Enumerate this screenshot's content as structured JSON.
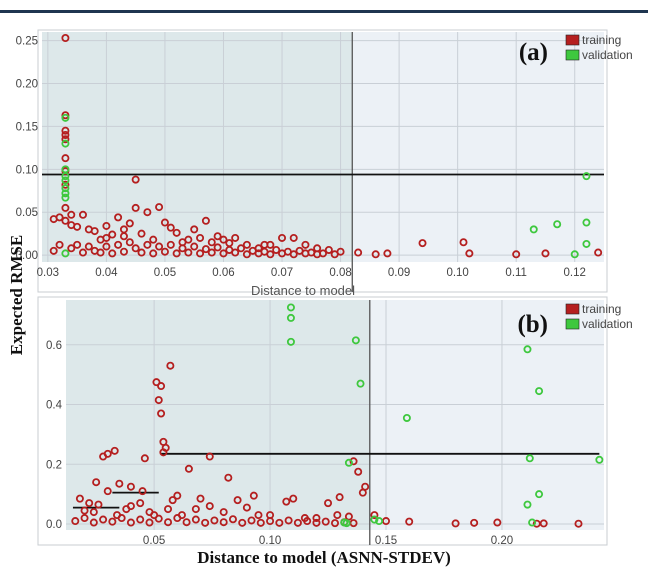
{
  "ylabel": "Expected RMSE",
  "xlabel": "Distance to model (ASNN-STDEV)",
  "colors": {
    "training": "#b51f1f",
    "validation": "#3ec83e",
    "shade": "#dde8ea",
    "bg": "#ecf1f6"
  },
  "chart_data": [
    {
      "type": "scatter",
      "panel_label": "(a)",
      "xlim": [
        0.029,
        0.125
      ],
      "ylim": [
        -0.008,
        0.26
      ],
      "xticks": [
        "0.03",
        "0.04",
        "0.05",
        "0.06",
        "0.07",
        "0.08",
        "0.09",
        "0.10",
        "0.11",
        "0.12"
      ],
      "xtick_values": [
        0.03,
        0.04,
        0.05,
        0.06,
        0.07,
        0.08,
        0.09,
        0.1,
        0.11,
        0.12
      ],
      "yticks": [
        "0.00",
        "0.05",
        "0.10",
        "0.15",
        "0.20",
        "0.25"
      ],
      "ytick_values": [
        0,
        0.05,
        0.1,
        0.15,
        0.2,
        0.25
      ],
      "xlabel_partial": "Distance to model",
      "threshold_x": 0.082,
      "threshold_y": 0.094,
      "legend": [
        "training",
        "validation"
      ],
      "legend_position": "top-right",
      "series": [
        {
          "name": "training",
          "points": [
            [
              0.033,
              0.253
            ],
            [
              0.033,
              0.163
            ],
            [
              0.033,
              0.145
            ],
            [
              0.033,
              0.14
            ],
            [
              0.033,
              0.135
            ],
            [
              0.033,
              0.113
            ],
            [
              0.033,
              0.098
            ],
            [
              0.033,
              0.082
            ],
            [
              0.033,
              0.055
            ],
            [
              0.034,
              0.047
            ],
            [
              0.033,
              0.04
            ],
            [
              0.034,
              0.035
            ],
            [
              0.031,
              0.042
            ],
            [
              0.032,
              0.044
            ],
            [
              0.035,
              0.033
            ],
            [
              0.036,
              0.047
            ],
            [
              0.037,
              0.03
            ],
            [
              0.038,
              0.028
            ],
            [
              0.039,
              0.018
            ],
            [
              0.04,
              0.034
            ],
            [
              0.041,
              0.024
            ],
            [
              0.042,
              0.044
            ],
            [
              0.043,
              0.03
            ],
            [
              0.044,
              0.037
            ],
            [
              0.045,
              0.088
            ],
            [
              0.045,
              0.055
            ],
            [
              0.047,
              0.05
            ],
            [
              0.049,
              0.056
            ],
            [
              0.05,
              0.038
            ],
            [
              0.051,
              0.032
            ],
            [
              0.052,
              0.026
            ],
            [
              0.054,
              0.018
            ],
            [
              0.055,
              0.03
            ],
            [
              0.056,
              0.02
            ],
            [
              0.057,
              0.04
            ],
            [
              0.058,
              0.015
            ],
            [
              0.059,
              0.022
            ],
            [
              0.06,
              0.018
            ],
            [
              0.062,
              0.02
            ],
            [
              0.064,
              0.012
            ],
            [
              0.066,
              0.008
            ],
            [
              0.068,
              0.012
            ],
            [
              0.07,
              0.02
            ],
            [
              0.072,
              0.02
            ],
            [
              0.074,
              0.012
            ],
            [
              0.076,
              0.008
            ],
            [
              0.078,
              0.006
            ],
            [
              0.08,
              0.004
            ],
            [
              0.083,
              0.003
            ],
            [
              0.086,
              0.001
            ],
            [
              0.088,
              0.002
            ],
            [
              0.094,
              0.014
            ],
            [
              0.101,
              0.015
            ],
            [
              0.102,
              0.002
            ],
            [
              0.11,
              0.001
            ],
            [
              0.115,
              0.002
            ],
            [
              0.124,
              0.003
            ],
            [
              0.031,
              0.005
            ],
            [
              0.032,
              0.012
            ],
            [
              0.034,
              0.008
            ],
            [
              0.035,
              0.012
            ],
            [
              0.036,
              0.003
            ],
            [
              0.037,
              0.01
            ],
            [
              0.038,
              0.005
            ],
            [
              0.039,
              0.003
            ],
            [
              0.04,
              0.01
            ],
            [
              0.041,
              0.002
            ],
            [
              0.042,
              0.012
            ],
            [
              0.043,
              0.004
            ],
            [
              0.044,
              0.015
            ],
            [
              0.045,
              0.008
            ],
            [
              0.046,
              0.003
            ],
            [
              0.047,
              0.012
            ],
            [
              0.048,
              0.002
            ],
            [
              0.049,
              0.01
            ],
            [
              0.05,
              0.004
            ],
            [
              0.051,
              0.012
            ],
            [
              0.052,
              0.002
            ],
            [
              0.053,
              0.008
            ],
            [
              0.054,
              0.003
            ],
            [
              0.055,
              0.01
            ],
            [
              0.056,
              0.002
            ],
            [
              0.057,
              0.007
            ],
            [
              0.058,
              0.003
            ],
            [
              0.059,
              0.009
            ],
            [
              0.06,
              0.002
            ],
            [
              0.061,
              0.006
            ],
            [
              0.062,
              0.003
            ],
            [
              0.063,
              0.008
            ],
            [
              0.064,
              0.001
            ],
            [
              0.065,
              0.005
            ],
            [
              0.066,
              0.002
            ],
            [
              0.067,
              0.004
            ],
            [
              0.068,
              0.001
            ],
            [
              0.069,
              0.006
            ],
            [
              0.07,
              0.002
            ],
            [
              0.071,
              0.004
            ],
            [
              0.072,
              0.001
            ],
            [
              0.073,
              0.005
            ],
            [
              0.074,
              0.002
            ],
            [
              0.075,
              0.003
            ],
            [
              0.076,
              0.001
            ],
            [
              0.077,
              0.002
            ],
            [
              0.079,
              0.001
            ],
            [
              0.04,
              0.02
            ],
            [
              0.043,
              0.022
            ],
            [
              0.046,
              0.025
            ],
            [
              0.048,
              0.018
            ],
            [
              0.053,
              0.015
            ],
            [
              0.061,
              0.014
            ],
            [
              0.067,
              0.012
            ]
          ]
        },
        {
          "name": "validation",
          "points": [
            [
              0.033,
              0.16
            ],
            [
              0.033,
              0.13
            ],
            [
              0.033,
              0.1
            ],
            [
              0.033,
              0.092
            ],
            [
              0.033,
              0.087
            ],
            [
              0.033,
              0.078
            ],
            [
              0.033,
              0.072
            ],
            [
              0.033,
              0.067
            ],
            [
              0.033,
              0.002
            ],
            [
              0.113,
              0.03
            ],
            [
              0.117,
              0.036
            ],
            [
              0.12,
              0.001
            ],
            [
              0.122,
              0.092
            ],
            [
              0.122,
              0.038
            ],
            [
              0.122,
              0.013
            ]
          ]
        }
      ]
    },
    {
      "type": "scatter",
      "panel_label": "(b)",
      "xlim": [
        0.012,
        0.244
      ],
      "ylim": [
        -0.02,
        0.75
      ],
      "xticks": [
        "0.05",
        "0.10",
        "0.15",
        "0.20"
      ],
      "xtick_values": [
        0.05,
        0.1,
        0.15,
        0.2
      ],
      "yticks": [
        "0.0",
        "0.2",
        "0.4",
        "0.6"
      ],
      "ytick_values": [
        0,
        0.2,
        0.4,
        0.6
      ],
      "threshold_x": 0.143,
      "step_segments": [
        [
          0.015,
          0.035,
          0.055
        ],
        [
          0.032,
          0.052,
          0.105
        ],
        [
          0.053,
          0.242,
          0.235
        ]
      ],
      "legend": [
        "training",
        "validation"
      ],
      "legend_position": "top-right",
      "series": [
        {
          "name": "training",
          "points": [
            [
              0.057,
              0.53
            ],
            [
              0.051,
              0.475
            ],
            [
              0.053,
              0.462
            ],
            [
              0.052,
              0.415
            ],
            [
              0.053,
              0.37
            ],
            [
              0.054,
              0.275
            ],
            [
              0.055,
              0.255
            ],
            [
              0.054,
              0.24
            ],
            [
              0.03,
              0.235
            ],
            [
              0.028,
              0.226
            ],
            [
              0.033,
              0.245
            ],
            [
              0.046,
              0.22
            ],
            [
              0.074,
              0.226
            ],
            [
              0.065,
              0.185
            ],
            [
              0.082,
              0.155
            ],
            [
              0.136,
              0.21
            ],
            [
              0.138,
              0.175
            ],
            [
              0.14,
              0.105
            ],
            [
              0.141,
              0.125
            ],
            [
              0.035,
              0.135
            ],
            [
              0.04,
              0.125
            ],
            [
              0.025,
              0.14
            ],
            [
              0.03,
              0.11
            ],
            [
              0.045,
              0.11
            ],
            [
              0.06,
              0.095
            ],
            [
              0.058,
              0.08
            ],
            [
              0.07,
              0.085
            ],
            [
              0.086,
              0.08
            ],
            [
              0.093,
              0.095
            ],
            [
              0.107,
              0.075
            ],
            [
              0.11,
              0.085
            ],
            [
              0.125,
              0.07
            ],
            [
              0.13,
              0.09
            ],
            [
              0.018,
              0.085
            ],
            [
              0.022,
              0.07
            ],
            [
              0.02,
              0.045
            ],
            [
              0.026,
              0.065
            ],
            [
              0.04,
              0.06
            ],
            [
              0.048,
              0.04
            ],
            [
              0.056,
              0.05
            ],
            [
              0.068,
              0.05
            ],
            [
              0.08,
              0.04
            ],
            [
              0.095,
              0.03
            ],
            [
              0.1,
              0.03
            ],
            [
              0.115,
              0.02
            ],
            [
              0.12,
              0.02
            ],
            [
              0.129,
              0.03
            ],
            [
              0.134,
              0.025
            ],
            [
              0.145,
              0.03
            ],
            [
              0.15,
              0.01
            ],
            [
              0.16,
              0.008
            ],
            [
              0.18,
              0.002
            ],
            [
              0.188,
              0.004
            ],
            [
              0.198,
              0.005
            ],
            [
              0.215,
              0.001
            ],
            [
              0.218,
              0.002
            ],
            [
              0.233,
              0.001
            ],
            [
              0.016,
              0.01
            ],
            [
              0.02,
              0.02
            ],
            [
              0.024,
              0.005
            ],
            [
              0.028,
              0.015
            ],
            [
              0.032,
              0.008
            ],
            [
              0.036,
              0.02
            ],
            [
              0.04,
              0.005
            ],
            [
              0.044,
              0.015
            ],
            [
              0.048,
              0.005
            ],
            [
              0.052,
              0.018
            ],
            [
              0.056,
              0.006
            ],
            [
              0.06,
              0.02
            ],
            [
              0.064,
              0.006
            ],
            [
              0.068,
              0.015
            ],
            [
              0.072,
              0.004
            ],
            [
              0.076,
              0.012
            ],
            [
              0.08,
              0.006
            ],
            [
              0.084,
              0.016
            ],
            [
              0.088,
              0.004
            ],
            [
              0.092,
              0.012
            ],
            [
              0.096,
              0.004
            ],
            [
              0.1,
              0.01
            ],
            [
              0.104,
              0.004
            ],
            [
              0.108,
              0.012
            ],
            [
              0.112,
              0.004
            ],
            [
              0.116,
              0.01
            ],
            [
              0.12,
              0.004
            ],
            [
              0.124,
              0.008
            ],
            [
              0.128,
              0.003
            ],
            [
              0.132,
              0.006
            ],
            [
              0.136,
              0.003
            ],
            [
              0.024,
              0.04
            ],
            [
              0.034,
              0.03
            ],
            [
              0.038,
              0.05
            ],
            [
              0.044,
              0.07
            ],
            [
              0.05,
              0.03
            ],
            [
              0.062,
              0.03
            ],
            [
              0.074,
              0.06
            ],
            [
              0.09,
              0.055
            ]
          ]
        },
        {
          "name": "validation",
          "points": [
            [
              0.109,
              0.725
            ],
            [
              0.109,
              0.69
            ],
            [
              0.109,
              0.61
            ],
            [
              0.137,
              0.615
            ],
            [
              0.139,
              0.47
            ],
            [
              0.134,
              0.205
            ],
            [
              0.159,
              0.355
            ],
            [
              0.211,
              0.585
            ],
            [
              0.216,
              0.445
            ],
            [
              0.212,
              0.22
            ],
            [
              0.216,
              0.1
            ],
            [
              0.211,
              0.065
            ],
            [
              0.242,
              0.215
            ],
            [
              0.145,
              0.015
            ],
            [
              0.147,
              0.01
            ],
            [
              0.132,
              0.005
            ],
            [
              0.133,
              0.003
            ],
            [
              0.213,
              0.005
            ]
          ]
        }
      ]
    }
  ]
}
